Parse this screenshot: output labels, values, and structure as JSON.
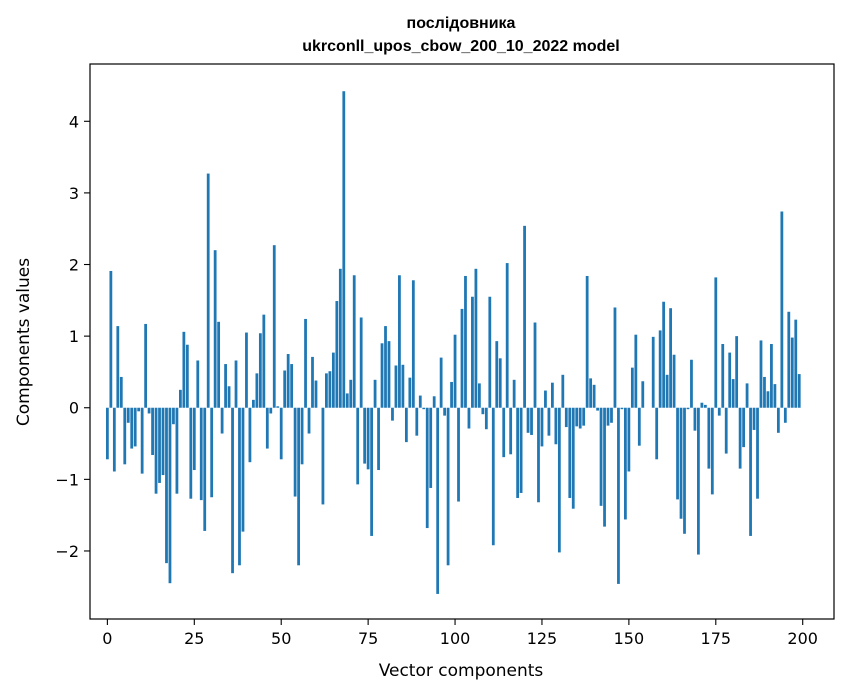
{
  "chart_data": {
    "type": "bar",
    "title": "послідовника",
    "subtitle": "ukrconll_upos_cbow_200_10_2022 model",
    "xlabel": "Vector components",
    "ylabel": "Components values",
    "xlim": [
      -5,
      209
    ],
    "ylim": [
      -2.95,
      4.8
    ],
    "xticks": [
      0,
      25,
      50,
      75,
      100,
      125,
      150,
      175,
      200
    ],
    "yticks": [
      -2,
      -1,
      0,
      1,
      2,
      3,
      4
    ],
    "ytick_labels": [
      "−2",
      "−1",
      "0",
      "1",
      "2",
      "3",
      "4"
    ],
    "bar_color": "#1f77b4",
    "grid": false,
    "values": [
      -0.72,
      1.91,
      -0.89,
      1.14,
      0.43,
      -0.79,
      -0.21,
      -0.57,
      -0.54,
      -0.05,
      -0.92,
      1.17,
      -0.08,
      -0.66,
      -1.2,
      -1.05,
      -0.94,
      -2.17,
      -2.45,
      -0.23,
      -1.2,
      0.25,
      1.06,
      0.88,
      -1.27,
      -0.87,
      0.66,
      -1.29,
      -1.72,
      3.27,
      -1.25,
      2.2,
      1.2,
      -0.36,
      0.61,
      0.3,
      -2.31,
      0.66,
      -2.2,
      -1.73,
      1.05,
      -0.76,
      0.11,
      0.48,
      1.04,
      1.3,
      -0.57,
      -0.08,
      2.27,
      0.02,
      -0.72,
      0.52,
      0.75,
      0.61,
      -1.24,
      -2.2,
      -0.79,
      1.24,
      -0.36,
      0.71,
      0.38,
      0.0,
      -1.35,
      0.48,
      0.51,
      0.77,
      1.49,
      1.94,
      4.42,
      0.2,
      0.39,
      1.85,
      -1.07,
      1.26,
      -0.78,
      -0.86,
      -1.79,
      0.39,
      -0.87,
      0.9,
      1.14,
      0.93,
      -0.18,
      0.59,
      1.85,
      0.6,
      -0.48,
      0.42,
      1.78,
      -0.39,
      0.17,
      -0.02,
      -1.68,
      -1.12,
      0.16,
      -2.6,
      0.7,
      -0.11,
      -2.2,
      0.36,
      1.02,
      -1.31,
      1.38,
      1.84,
      -0.29,
      1.55,
      1.94,
      0.34,
      -0.09,
      -0.3,
      1.55,
      -1.92,
      0.93,
      0.69,
      -0.69,
      2.02,
      -0.65,
      0.39,
      -1.26,
      -1.19,
      2.54,
      -0.35,
      -0.38,
      1.19,
      -1.32,
      -0.54,
      0.24,
      -0.39,
      0.35,
      -0.51,
      -2.02,
      0.46,
      -0.27,
      -1.26,
      -1.41,
      -0.26,
      -0.29,
      -0.25,
      1.84,
      0.41,
      0.32,
      -0.04,
      -1.37,
      -1.66,
      -0.25,
      -0.21,
      1.4,
      -2.46,
      -0.02,
      -1.56,
      -0.89,
      0.56,
      1.02,
      -0.53,
      0.37,
      0.0,
      0.0,
      0.99,
      -0.72,
      1.08,
      1.48,
      0.46,
      1.39,
      0.74,
      -1.28,
      -1.55,
      -1.76,
      -0.02,
      0.67,
      -0.32,
      -2.05,
      0.07,
      0.04,
      -0.85,
      -1.21,
      1.82,
      -0.11,
      0.89,
      -0.64,
      0.77,
      0.4,
      1.0,
      -0.85,
      -0.55,
      0.34,
      -1.79,
      -0.31,
      -1.27,
      0.94,
      0.43,
      0.23,
      0.89,
      0.33,
      -0.35,
      2.74,
      -0.21,
      1.34,
      0.98,
      1.23,
      0.47
    ]
  }
}
